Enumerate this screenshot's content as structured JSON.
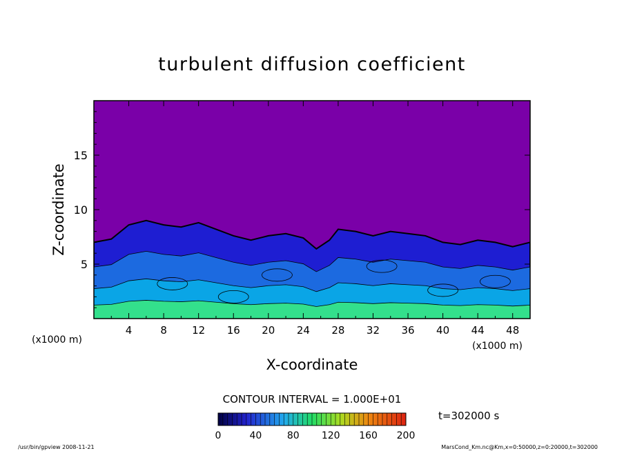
{
  "chart_data": {
    "type": "heatmap",
    "title": "turbulent diffusion coefficient",
    "xlabel": "X-coordinate",
    "ylabel": "Z-coordinate",
    "x_unit_left": "(x1000 m)",
    "x_unit_right": "(x1000 m)",
    "xlim": [
      0,
      50
    ],
    "ylim": [
      0,
      20
    ],
    "x_ticks": [
      "4",
      "8",
      "12",
      "16",
      "20",
      "24",
      "28",
      "32",
      "36",
      "40",
      "44",
      "48"
    ],
    "y_ticks": [
      "5",
      "10",
      "15"
    ],
    "contour_interval": "CONTOUR INTERVAL = 1.000E+01",
    "time_label": "t=302000 s",
    "colorbar": {
      "range": [
        0,
        200
      ],
      "ticks": [
        "0",
        "40",
        "80",
        "120",
        "160",
        "200"
      ]
    },
    "boundary_layer_top": [
      [
        0,
        7.0
      ],
      [
        2,
        7.3
      ],
      [
        4,
        8.6
      ],
      [
        6,
        9.0
      ],
      [
        8,
        8.6
      ],
      [
        10,
        8.4
      ],
      [
        12,
        8.8
      ],
      [
        14,
        8.2
      ],
      [
        16,
        7.6
      ],
      [
        18,
        7.2
      ],
      [
        20,
        7.6
      ],
      [
        22,
        7.8
      ],
      [
        24,
        7.4
      ],
      [
        25.5,
        6.4
      ],
      [
        27,
        7.2
      ],
      [
        28,
        8.2
      ],
      [
        30,
        8.0
      ],
      [
        32,
        7.6
      ],
      [
        34,
        8.0
      ],
      [
        36,
        7.8
      ],
      [
        38,
        7.6
      ],
      [
        40,
        7.0
      ],
      [
        42,
        6.8
      ],
      [
        44,
        7.2
      ],
      [
        46,
        7.0
      ],
      [
        48,
        6.6
      ],
      [
        50,
        7.0
      ]
    ],
    "colors": {
      "background_field": "#7a00a8",
      "low": "#1e1ed2",
      "mid": "#0aa5e6",
      "high": "#33e08c"
    }
  },
  "footer": {
    "left": "/usr/bin/gpview  2008-11-21",
    "right": "MarsCond_Km.nc@Km,x=0:50000,z=0:20000,t=302000"
  }
}
